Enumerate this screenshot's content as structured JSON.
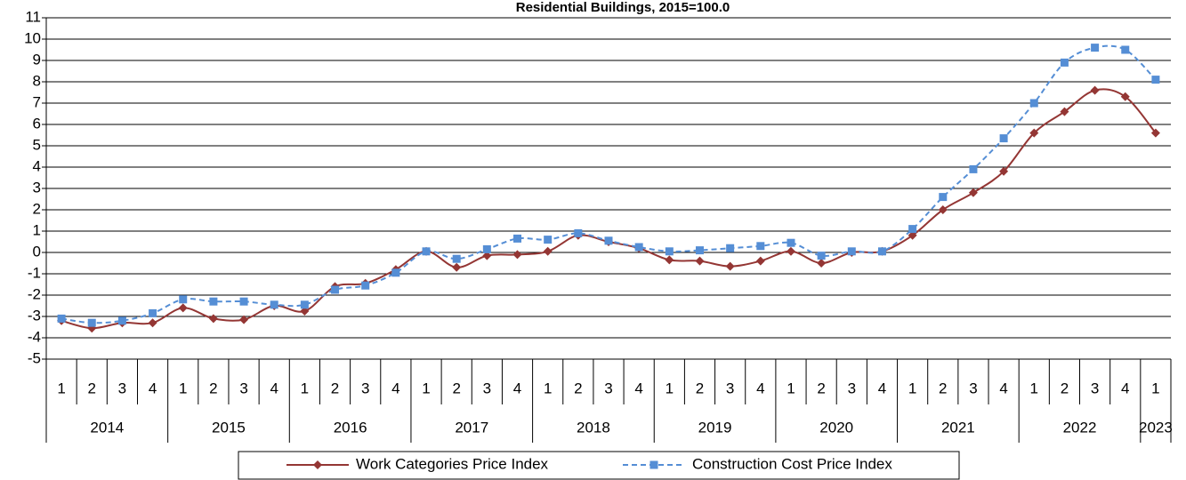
{
  "chart_data": {
    "type": "line",
    "title": "Residential Buildings, 2015=100.0",
    "categories": [
      "1",
      "2",
      "3",
      "4",
      "1",
      "2",
      "3",
      "4",
      "1",
      "2",
      "3",
      "4",
      "1",
      "2",
      "3",
      "4",
      "1",
      "2",
      "3",
      "4",
      "1",
      "2",
      "3",
      "4",
      "1",
      "2",
      "3",
      "4",
      "1",
      "2",
      "3",
      "4",
      "1",
      "2",
      "3",
      "4",
      "1"
    ],
    "years": [
      "2014",
      "2015",
      "2016",
      "2017",
      "2018",
      "2019",
      "2020",
      "2021",
      "2022",
      "2023"
    ],
    "series": [
      {
        "name": "Work Categories Price Index",
        "color": "#943634",
        "marker": "diamond",
        "dashed": false,
        "values": [
          -3.2,
          -3.55,
          -3.3,
          -3.3,
          -2.6,
          -3.1,
          -3.15,
          -2.5,
          -2.75,
          -1.6,
          -1.45,
          -0.8,
          0.05,
          -0.7,
          -0.15,
          -0.1,
          0.05,
          0.8,
          0.5,
          0.2,
          -0.35,
          -0.4,
          -0.65,
          -0.4,
          0.05,
          -0.5,
          0.0,
          0.05,
          0.8,
          2.0,
          2.8,
          3.8,
          5.6,
          6.6,
          7.6,
          7.3,
          5.6
        ]
      },
      {
        "name": "Construction Cost Price Index",
        "color": "#558ed5",
        "marker": "square",
        "dashed": true,
        "values": [
          -3.1,
          -3.3,
          -3.2,
          -2.85,
          -2.2,
          -2.3,
          -2.3,
          -2.45,
          -2.45,
          -1.75,
          -1.55,
          -0.95,
          0.05,
          -0.3,
          0.15,
          0.65,
          0.6,
          0.9,
          0.55,
          0.25,
          0.05,
          0.1,
          0.2,
          0.3,
          0.45,
          -0.15,
          0.05,
          0.05,
          1.1,
          2.6,
          3.9,
          5.35,
          7.0,
          8.9,
          9.6,
          9.5,
          8.1
        ]
      }
    ],
    "ylim": [
      -5,
      11
    ],
    "yticks": [
      -5,
      -4,
      -3,
      -2,
      -1,
      0,
      1,
      2,
      3,
      4,
      5,
      6,
      7,
      8,
      9,
      10,
      11
    ],
    "grid": true,
    "legend": "bottom"
  }
}
